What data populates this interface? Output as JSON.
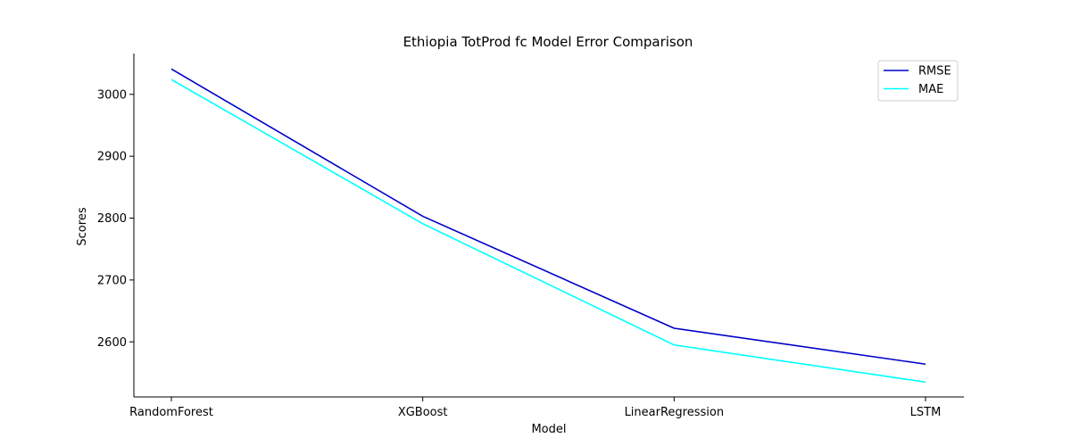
{
  "chart_data": {
    "type": "line",
    "title": "Ethiopia TotProd fc Model Error Comparison",
    "xlabel": "Model",
    "ylabel": "Scores",
    "categories": [
      "RandomForest",
      "XGBoost",
      "LinearRegression",
      "LSTM"
    ],
    "series": [
      {
        "name": "RMSE",
        "color": "#0000c8",
        "values": [
          3041,
          2803,
          2622,
          2564
        ]
      },
      {
        "name": "MAE",
        "color": "#00ffff",
        "values": [
          3024,
          2791,
          2595,
          2535
        ]
      }
    ],
    "ylim": [
      2511,
      3066
    ],
    "yticks": [
      2600,
      2700,
      2800,
      2900,
      3000
    ],
    "grid": false,
    "legend": "top-right"
  }
}
